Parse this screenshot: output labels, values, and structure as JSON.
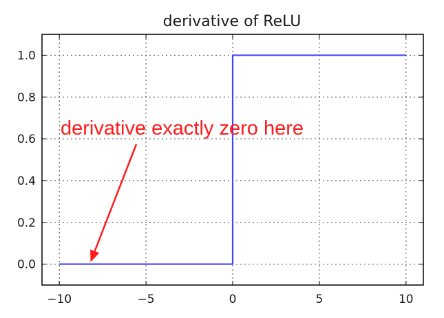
{
  "chart_data": {
    "type": "line",
    "title": "derivative of ReLU",
    "xlabel": "",
    "ylabel": "",
    "xlim": [
      -11,
      11
    ],
    "ylim": [
      -0.1,
      1.1
    ],
    "x_ticks": [
      -10,
      -5,
      0,
      5,
      10
    ],
    "x_tick_labels": [
      "−10",
      "−5",
      "0",
      "5",
      "10"
    ],
    "y_ticks": [
      0.0,
      0.2,
      0.4,
      0.6,
      0.8,
      1.0
    ],
    "y_tick_labels": [
      "0.0",
      "0.2",
      "0.4",
      "0.6",
      "0.8",
      "1.0"
    ],
    "grid": true,
    "series": [
      {
        "color": "#4040ff",
        "x": [
          -10,
          0,
          0,
          10
        ],
        "y": [
          0,
          0,
          1,
          1
        ]
      }
    ],
    "annotations": [
      {
        "text": "derivative exactly zero here",
        "color": "#ff1a1a",
        "arrow_to": [
          -8.2,
          0.0
        ]
      }
    ]
  }
}
